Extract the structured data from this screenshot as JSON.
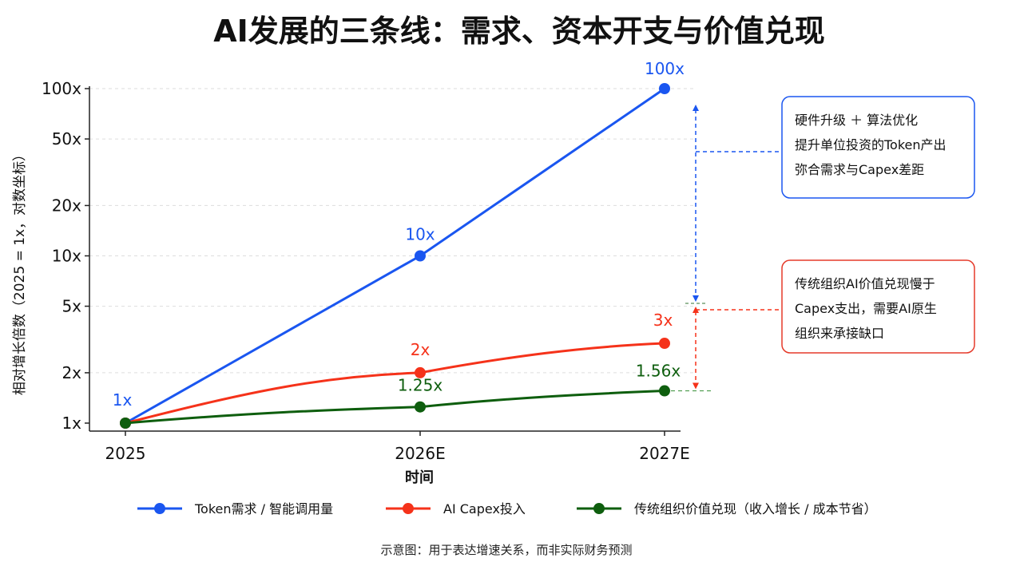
{
  "chart_data": {
    "type": "line",
    "title": "AI发展的三条线：需求、资本开支与价值兑现",
    "xlabel": "时间",
    "ylabel": "相对增长倍数（2025 = 1x，对数坐标）",
    "yscale": "log",
    "ylim": [
      1,
      100
    ],
    "yticks": [
      1,
      2,
      5,
      10,
      20,
      50,
      100
    ],
    "ytick_labels": [
      "1x",
      "2x",
      "5x",
      "10x",
      "20x",
      "50x",
      "100x"
    ],
    "categories": [
      "2025",
      "2026E",
      "2027E"
    ],
    "grid": "horizontal dashed",
    "legend_position": "bottom",
    "series": [
      {
        "name": "Token需求 / 智能调用量",
        "color": "#1a56f0",
        "values": [
          1,
          10,
          100
        ],
        "labels": [
          "1x",
          "10x",
          "100x"
        ]
      },
      {
        "name": "AI Capex投入",
        "color": "#f5321a",
        "values": [
          1,
          2,
          3
        ],
        "labels": [
          "",
          "2x",
          "3x"
        ]
      },
      {
        "name": "传统组织价值兑现（收入增长 / 成本节省）",
        "color": "#0e5e0e",
        "values": [
          1,
          1.25,
          1.56
        ],
        "labels": [
          "",
          "1.25x",
          "1.56x"
        ]
      }
    ],
    "annotations": [
      {
        "lines": [
          "硬件升级 ＋ 算法优化",
          "提升单位投资的Token产出",
          "弥合需求与Capex差距"
        ],
        "border_color": "#1a56f0"
      },
      {
        "lines": [
          "传统组织AI价值兑现慢于",
          "Capex支出，需要AI原生",
          "组织来承接缺口"
        ],
        "border_color": "#e53a2a"
      }
    ],
    "footnote": "示意图：用于表达增速关系，而非实际财务预测"
  }
}
